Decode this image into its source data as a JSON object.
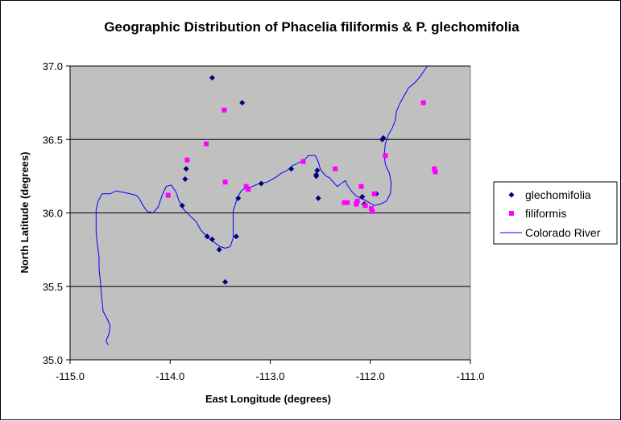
{
  "chart_data": {
    "type": "scatter",
    "title": "Geographic Distribution of Phacelia filiformis & P. glechomifolia",
    "xlabel": "East Longitude (degrees)",
    "ylabel": "North Latitude (degrees)",
    "xlim": [
      -115.0,
      -111.0
    ],
    "ylim": [
      35.0,
      37.0
    ],
    "x_ticks": [
      "-115.0",
      "-114.0",
      "-113.0",
      "-112.0",
      "-111.0"
    ],
    "y_ticks": [
      "35.0",
      "35.5",
      "36.0",
      "36.5",
      "37.0"
    ],
    "x_tick_values": [
      -115.0,
      -114.0,
      -113.0,
      -112.0,
      -111.0
    ],
    "y_tick_values": [
      35.0,
      35.5,
      36.0,
      36.5,
      37.0
    ],
    "grid": "horizontal major gridlines",
    "plot_background": "#c0c0c0",
    "legend_position": "right",
    "series": [
      {
        "name": "glechomifolia",
        "marker": "diamond",
        "color": "#000080",
        "points": [
          [
            -113.58,
            36.92
          ],
          [
            -113.28,
            36.75
          ],
          [
            -113.84,
            36.3
          ],
          [
            -113.85,
            36.23
          ],
          [
            -113.88,
            36.05
          ],
          [
            -113.63,
            35.84
          ],
          [
            -113.58,
            35.82
          ],
          [
            -113.51,
            35.75
          ],
          [
            -113.45,
            35.53
          ],
          [
            -113.34,
            35.84
          ],
          [
            -113.32,
            36.1
          ],
          [
            -113.09,
            36.2
          ],
          [
            -112.79,
            36.3
          ],
          [
            -112.53,
            36.29
          ],
          [
            -112.54,
            36.26
          ],
          [
            -112.54,
            36.25
          ],
          [
            -112.52,
            36.1
          ],
          [
            -112.08,
            36.11
          ],
          [
            -112.06,
            36.06
          ],
          [
            -111.94,
            36.13
          ],
          [
            -111.88,
            36.5
          ],
          [
            -111.87,
            36.51
          ]
        ]
      },
      {
        "name": "filiformis",
        "marker": "square",
        "color": "#ff00ff",
        "points": [
          [
            -113.64,
            36.47
          ],
          [
            -113.46,
            36.7
          ],
          [
            -113.83,
            36.36
          ],
          [
            -113.45,
            36.21
          ],
          [
            -113.24,
            36.18
          ],
          [
            -113.22,
            36.16
          ],
          [
            -114.02,
            36.12
          ],
          [
            -112.67,
            36.35
          ],
          [
            -112.35,
            36.3
          ],
          [
            -112.26,
            36.07
          ],
          [
            -112.23,
            36.07
          ],
          [
            -112.14,
            36.06
          ],
          [
            -112.13,
            36.08
          ],
          [
            -112.09,
            36.18
          ],
          [
            -112.05,
            36.05
          ],
          [
            -111.99,
            36.03
          ],
          [
            -111.98,
            36.01
          ],
          [
            -111.96,
            36.13
          ],
          [
            -111.85,
            36.39
          ],
          [
            -111.47,
            36.75
          ],
          [
            -111.36,
            36.3
          ],
          [
            -111.35,
            36.28
          ]
        ]
      },
      {
        "name": "Colorado River",
        "marker": "line",
        "color": "#0000ff",
        "points": [
          [
            -114.62,
            35.1
          ],
          [
            -114.64,
            35.13
          ],
          [
            -114.61,
            35.18
          ],
          [
            -114.6,
            35.23
          ],
          [
            -114.63,
            35.28
          ],
          [
            -114.67,
            35.33
          ],
          [
            -114.68,
            35.4
          ],
          [
            -114.69,
            35.47
          ],
          [
            -114.7,
            35.55
          ],
          [
            -114.71,
            35.62
          ],
          [
            -114.71,
            35.7
          ],
          [
            -114.72,
            35.75
          ],
          [
            -114.73,
            35.8
          ],
          [
            -114.74,
            35.87
          ],
          [
            -114.74,
            35.95
          ],
          [
            -114.74,
            36.02
          ],
          [
            -114.72,
            36.08
          ],
          [
            -114.68,
            36.13
          ],
          [
            -114.6,
            36.13
          ],
          [
            -114.54,
            36.15
          ],
          [
            -114.47,
            36.14
          ],
          [
            -114.4,
            36.13
          ],
          [
            -114.34,
            36.12
          ],
          [
            -114.31,
            36.1
          ],
          [
            -114.27,
            36.05
          ],
          [
            -114.23,
            36.01
          ],
          [
            -114.17,
            36.0
          ],
          [
            -114.12,
            36.04
          ],
          [
            -114.08,
            36.12
          ],
          [
            -114.04,
            36.18
          ],
          [
            -113.99,
            36.19
          ],
          [
            -113.94,
            36.14
          ],
          [
            -113.91,
            36.08
          ],
          [
            -113.86,
            36.02
          ],
          [
            -113.8,
            35.98
          ],
          [
            -113.74,
            35.94
          ],
          [
            -113.69,
            35.88
          ],
          [
            -113.62,
            35.83
          ],
          [
            -113.56,
            35.8
          ],
          [
            -113.5,
            35.77
          ],
          [
            -113.45,
            35.76
          ],
          [
            -113.4,
            35.77
          ],
          [
            -113.37,
            35.83
          ],
          [
            -113.37,
            35.92
          ],
          [
            -113.37,
            36.01
          ],
          [
            -113.33,
            36.1
          ],
          [
            -113.29,
            36.15
          ],
          [
            -113.24,
            36.17
          ],
          [
            -113.18,
            36.18
          ],
          [
            -113.11,
            36.2
          ],
          [
            -113.03,
            36.21
          ],
          [
            -112.95,
            36.24
          ],
          [
            -112.89,
            36.27
          ],
          [
            -112.83,
            36.29
          ],
          [
            -112.78,
            36.32
          ],
          [
            -112.72,
            36.34
          ],
          [
            -112.66,
            36.36
          ],
          [
            -112.62,
            36.39
          ],
          [
            -112.55,
            36.39
          ],
          [
            -112.52,
            36.35
          ],
          [
            -112.5,
            36.3
          ],
          [
            -112.47,
            36.27
          ],
          [
            -112.44,
            36.25
          ],
          [
            -112.41,
            36.24
          ],
          [
            -112.37,
            36.21
          ],
          [
            -112.33,
            36.18
          ],
          [
            -112.29,
            36.2
          ],
          [
            -112.25,
            36.22
          ],
          [
            -112.23,
            36.19
          ],
          [
            -112.19,
            36.15
          ],
          [
            -112.15,
            36.12
          ],
          [
            -112.1,
            36.1
          ],
          [
            -112.06,
            36.09
          ],
          [
            -112.01,
            36.07
          ],
          [
            -111.96,
            36.05
          ],
          [
            -111.9,
            36.06
          ],
          [
            -111.84,
            36.08
          ],
          [
            -111.8,
            36.13
          ],
          [
            -111.79,
            36.2
          ],
          [
            -111.81,
            36.27
          ],
          [
            -111.85,
            36.33
          ],
          [
            -111.86,
            36.4
          ],
          [
            -111.85,
            36.47
          ],
          [
            -111.82,
            36.53
          ],
          [
            -111.78,
            36.58
          ],
          [
            -111.75,
            36.63
          ],
          [
            -111.74,
            36.69
          ],
          [
            -111.7,
            36.75
          ],
          [
            -111.66,
            36.8
          ],
          [
            -111.62,
            36.85
          ],
          [
            -111.55,
            36.89
          ],
          [
            -111.5,
            36.93
          ],
          [
            -111.46,
            36.97
          ],
          [
            -111.43,
            37.0
          ]
        ]
      }
    ]
  }
}
